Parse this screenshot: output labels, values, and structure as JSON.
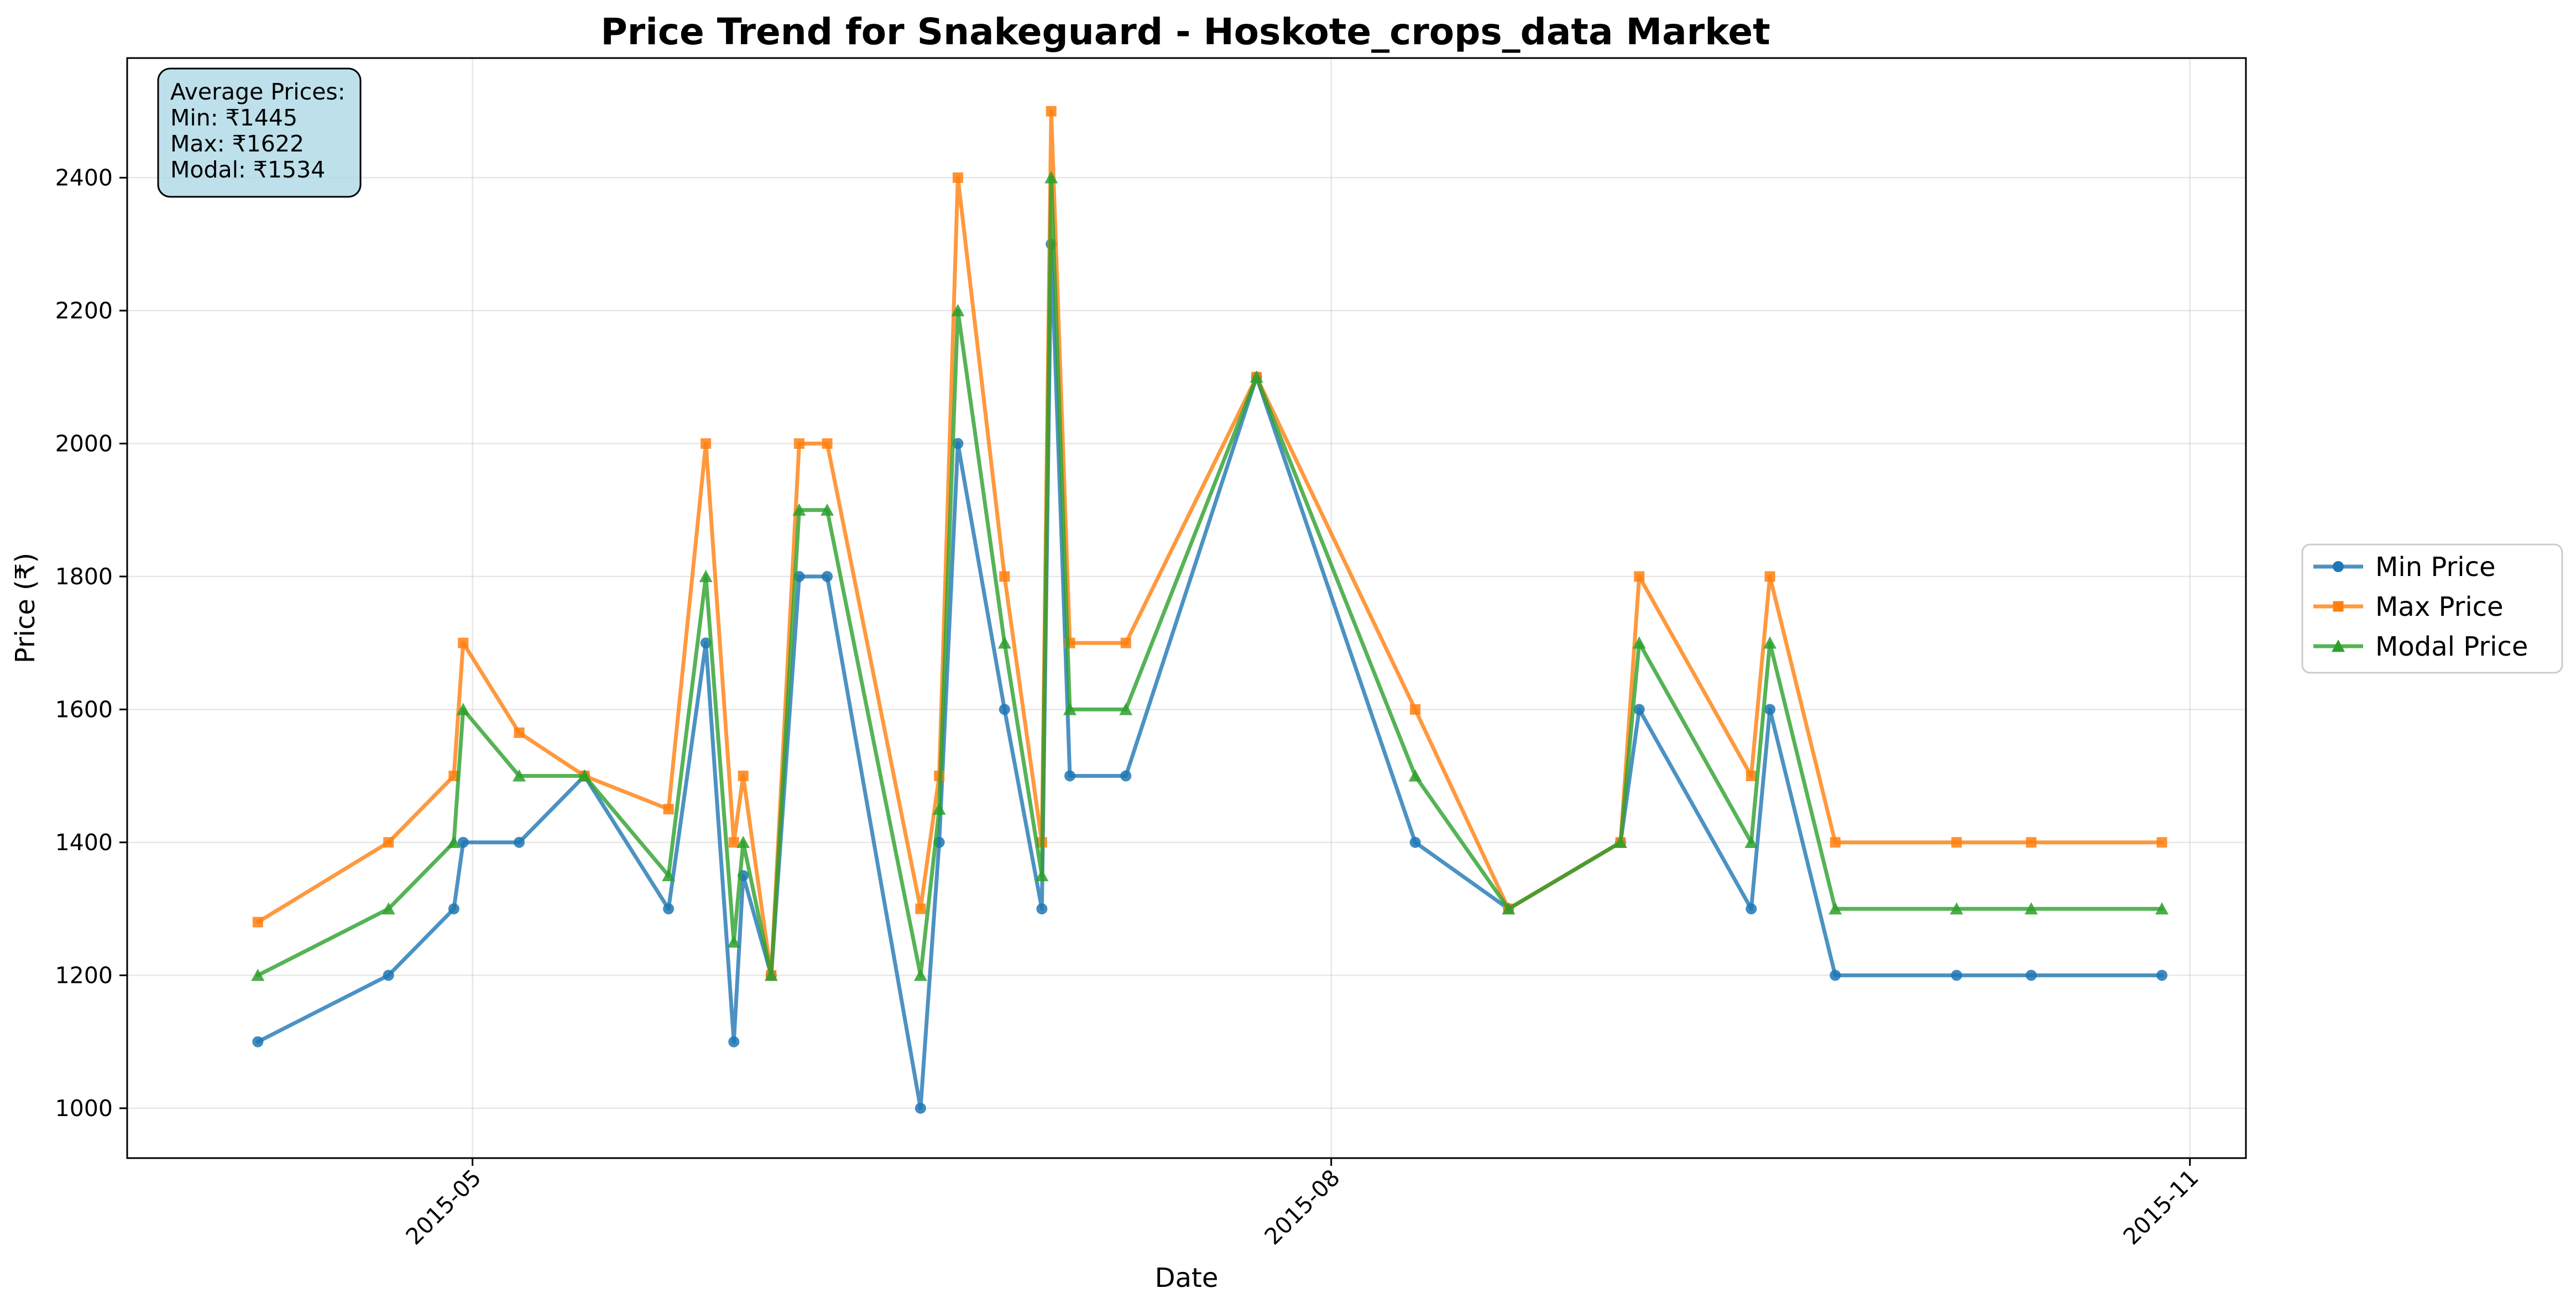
{
  "chart_data": {
    "type": "line",
    "title": "Price Trend for Snakeguard - Hoskote_crops_data Market",
    "xlabel": "Date",
    "ylabel": "Price (₹)",
    "x_ticks": [
      {
        "date": "2015-05-01",
        "label": "2015-05"
      },
      {
        "date": "2015-08-01",
        "label": "2015-08"
      },
      {
        "date": "2015-11-01",
        "label": "2015-11"
      }
    ],
    "xlim": [
      "2015-03-25",
      "2015-11-07"
    ],
    "y_ticks": [
      1000,
      1200,
      1400,
      1600,
      1800,
      2000,
      2200,
      2400
    ],
    "ylim": [
      925,
      2580
    ],
    "grid": true,
    "legend_position": "right-outside",
    "x": [
      "2015-04-08",
      "2015-04-22",
      "2015-04-29",
      "2015-04-30",
      "2015-05-06",
      "2015-05-13",
      "2015-05-22",
      "2015-05-26",
      "2015-05-29",
      "2015-05-30",
      "2015-06-02",
      "2015-06-05",
      "2015-06-08",
      "2015-06-18",
      "2015-06-20",
      "2015-06-22",
      "2015-06-27",
      "2015-07-01",
      "2015-07-02",
      "2015-07-04",
      "2015-07-10",
      "2015-07-24",
      "2015-08-10",
      "2015-08-20",
      "2015-09-01",
      "2015-09-03",
      "2015-09-15",
      "2015-09-17",
      "2015-09-24",
      "2015-10-07",
      "2015-10-15",
      "2015-10-29"
    ],
    "series": [
      {
        "name": "Min Price",
        "color": "#1f77b4",
        "marker": "circle",
        "values": [
          1100,
          1200,
          1300,
          1400,
          1400,
          1500,
          1300,
          1700,
          1100,
          1350,
          1200,
          1800,
          1800,
          1000,
          1400,
          2000,
          1600,
          1300,
          2300,
          1500,
          1500,
          2100,
          1400,
          1300,
          1400,
          1600,
          1300,
          1600,
          1200,
          1200,
          1200,
          1200
        ]
      },
      {
        "name": "Max Price",
        "color": "#ff7f0e",
        "marker": "square",
        "values": [
          1280,
          1400,
          1500,
          1700,
          1565,
          1500,
          1450,
          2000,
          1400,
          1500,
          1200,
          2000,
          2000,
          1300,
          1500,
          2400,
          1800,
          1400,
          2500,
          1700,
          1700,
          2100,
          1600,
          1300,
          1400,
          1800,
          1500,
          1800,
          1400,
          1400,
          1400,
          1400
        ]
      },
      {
        "name": "Modal Price",
        "color": "#2ca02c",
        "marker": "triangle",
        "values": [
          1200,
          1300,
          1400,
          1600,
          1500,
          1500,
          1350,
          1800,
          1250,
          1400,
          1200,
          1900,
          1900,
          1200,
          1450,
          2200,
          1700,
          1350,
          2400,
          1600,
          1600,
          2100,
          1500,
          1300,
          1400,
          1700,
          1400,
          1700,
          1300,
          1300,
          1300,
          1300
        ]
      }
    ],
    "stats_box": {
      "lines": [
        "Average Prices:",
        "Min: ₹1445",
        "Max: ₹1622",
        "Modal: ₹1534"
      ],
      "background": "#add8e6"
    }
  }
}
